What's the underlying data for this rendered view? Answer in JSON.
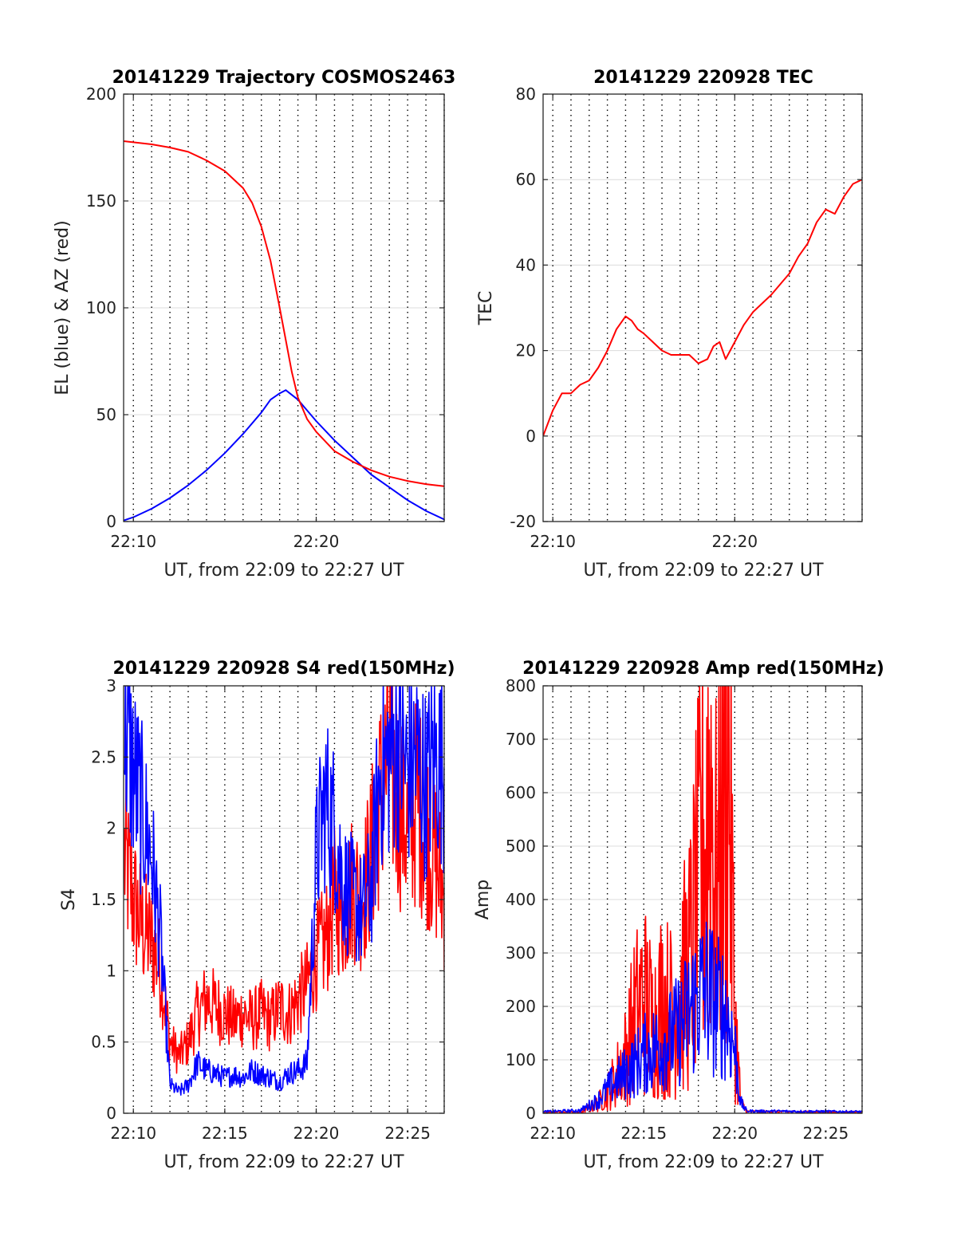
{
  "chart_data": [
    {
      "type": "line",
      "title": "20141229 Trajectory COSMOS2463",
      "xlabel": "UT, from 22:09 to 22:27 UT",
      "ylabel": "EL (blue) & AZ (red)",
      "xlim": [
        "22:09:28",
        "22:27:00"
      ],
      "ylim": [
        0,
        200
      ],
      "xticks": [
        "22:10",
        "22:20"
      ],
      "yticks": [
        0,
        50,
        100,
        150,
        200
      ],
      "grid": true,
      "vlines_dotted_every_min": true,
      "series": [
        {
          "color": "#0000ff",
          "x": [
            "22:09:28",
            "22:10:00",
            "22:11:00",
            "22:12:00",
            "22:13:00",
            "22:14:00",
            "22:15:00",
            "22:16:00",
            "22:17:00",
            "22:17:30",
            "22:18:00",
            "22:18:20",
            "22:19:00",
            "22:20:00",
            "22:21:00",
            "22:22:00",
            "22:23:00",
            "22:24:00",
            "22:25:00",
            "22:26:00",
            "22:27:00"
          ],
          "y": [
            0.5,
            2,
            6,
            11,
            17,
            24,
            32,
            41,
            51,
            57,
            60,
            61.5,
            57,
            47,
            38,
            30,
            22,
            16,
            10,
            5,
            1
          ]
        },
        {
          "color": "#ff0000",
          "x": [
            "22:09:28",
            "22:11:00",
            "22:12:00",
            "22:13:00",
            "22:14:00",
            "22:15:00",
            "22:16:00",
            "22:16:30",
            "22:17:00",
            "22:17:30",
            "22:18:00",
            "22:18:20",
            "22:18:40",
            "22:19:00",
            "22:19:30",
            "22:20:00",
            "22:21:00",
            "22:22:00",
            "22:23:00",
            "22:24:00",
            "22:25:00",
            "22:26:00",
            "22:27:00"
          ],
          "y": [
            178,
            176.5,
            175,
            173,
            169,
            164,
            156,
            149,
            138,
            122,
            100,
            85,
            70,
            58,
            48,
            42,
            33,
            28,
            24,
            21,
            19,
            17.5,
            16.5
          ]
        }
      ]
    },
    {
      "type": "line",
      "title": "20141229 220928 TEC",
      "xlabel": "UT, from 22:09 to 22:27 UT",
      "ylabel": "TEC",
      "xlim": [
        "22:09:28",
        "22:27:00"
      ],
      "ylim": [
        -20,
        80
      ],
      "xticks": [
        "22:10",
        "22:20"
      ],
      "yticks": [
        -20,
        0,
        20,
        40,
        60,
        80
      ],
      "grid": true,
      "vlines_dotted_every_min": true,
      "series": [
        {
          "color": "#ff0000",
          "x": [
            "22:09:28",
            "22:10:00",
            "22:10:30",
            "22:11:00",
            "22:11:30",
            "22:12:00",
            "22:12:30",
            "22:13:00",
            "22:13:30",
            "22:14:00",
            "22:14:20",
            "22:14:40",
            "22:15:00",
            "22:15:30",
            "22:16:00",
            "22:16:30",
            "22:17:00",
            "22:17:30",
            "22:18:00",
            "22:18:30",
            "22:18:50",
            "22:19:10",
            "22:19:30",
            "22:19:45",
            "22:20:00",
            "22:20:30",
            "22:21:00",
            "22:22:00",
            "22:23:00",
            "22:23:30",
            "22:24:00",
            "22:24:30",
            "22:25:00",
            "22:25:30",
            "22:26:00",
            "22:26:30",
            "22:27:00"
          ],
          "y": [
            0,
            6,
            10,
            10,
            12,
            13,
            16,
            20,
            25,
            28,
            27,
            25,
            24,
            22,
            20,
            19,
            19,
            19,
            17,
            18,
            21,
            22,
            18,
            20,
            22,
            26,
            29,
            33,
            38,
            42,
            45,
            50,
            53,
            52,
            56,
            59,
            60
          ]
        }
      ]
    },
    {
      "type": "line",
      "title": "20141229 220928 S4 red(150MHz)",
      "xlabel": "UT, from 22:09 to 22:27 UT",
      "ylabel": "S4",
      "xlim": [
        "22:09:28",
        "22:27:00"
      ],
      "ylim": [
        0,
        3
      ],
      "xticks": [
        "22:10",
        "22:15",
        "22:20",
        "22:25"
      ],
      "yticks": [
        0,
        0.5,
        1,
        1.5,
        2,
        2.5,
        3
      ],
      "grid": true,
      "vlines_dotted_every_min": true,
      "series": [
        {
          "color": "#ff0000",
          "noise": 0.35,
          "x": [
            "22:09:30",
            "22:10:00",
            "22:10:30",
            "22:11:00",
            "22:11:30",
            "22:12:00",
            "22:12:30",
            "22:13:00",
            "22:13:30",
            "22:14:00",
            "22:14:30",
            "22:15:00",
            "22:15:30",
            "22:16:00",
            "22:16:30",
            "22:17:00",
            "22:17:30",
            "22:18:00",
            "22:18:30",
            "22:19:00",
            "22:19:30",
            "22:20:00",
            "22:20:30",
            "22:21:00",
            "22:21:30",
            "22:22:00",
            "22:22:30",
            "22:23:00",
            "22:23:30",
            "22:24:00",
            "22:24:30",
            "22:25:00",
            "22:25:30",
            "22:26:00",
            "22:26:30",
            "22:27:00"
          ],
          "y": [
            1.8,
            1.5,
            1.3,
            1.2,
            1.0,
            0.5,
            0.4,
            0.5,
            0.7,
            0.8,
            0.75,
            0.7,
            0.65,
            0.7,
            0.65,
            0.7,
            0.65,
            0.75,
            0.7,
            0.8,
            0.9,
            1.1,
            1.2,
            1.5,
            1.4,
            1.6,
            1.5,
            1.8,
            2.2,
            2.5,
            2.2,
            2.0,
            2.2,
            2.0,
            1.8,
            1.5
          ]
        },
        {
          "color": "#0000ff",
          "noise": 0.3,
          "x": [
            "22:09:30",
            "22:10:00",
            "22:10:30",
            "22:11:00",
            "22:11:30",
            "22:12:00",
            "22:12:30",
            "22:13:00",
            "22:13:30",
            "22:14:00",
            "22:14:30",
            "22:15:00",
            "22:15:30",
            "22:16:00",
            "22:16:30",
            "22:17:00",
            "22:17:30",
            "22:18:00",
            "22:18:30",
            "22:19:00",
            "22:19:30",
            "22:20:00",
            "22:20:30",
            "22:21:00",
            "22:21:30",
            "22:22:00",
            "22:22:30",
            "22:23:00",
            "22:23:30",
            "22:24:00",
            "22:24:30",
            "22:25:00",
            "22:25:30",
            "22:26:00",
            "22:26:30",
            "22:27:00"
          ],
          "y": [
            2.7,
            2.4,
            2.1,
            1.8,
            1.2,
            0.2,
            0.15,
            0.2,
            0.35,
            0.3,
            0.28,
            0.25,
            0.27,
            0.25,
            0.3,
            0.27,
            0.25,
            0.22,
            0.28,
            0.3,
            0.35,
            1.8,
            2.2,
            2.0,
            1.6,
            1.5,
            1.4,
            1.6,
            2.4,
            2.5,
            2.6,
            2.4,
            2.5,
            2.3,
            2.5,
            2.4
          ]
        }
      ]
    },
    {
      "type": "line",
      "title": "20141229 220928 Amp red(150MHz)",
      "xlabel": "UT, from 22:09 to 22:27 UT",
      "ylabel": "Amp",
      "xlim": [
        "22:09:28",
        "22:27:00"
      ],
      "ylim": [
        0,
        800
      ],
      "xticks": [
        "22:10",
        "22:15",
        "22:20",
        "22:25"
      ],
      "yticks": [
        0,
        100,
        200,
        300,
        400,
        500,
        600,
        700,
        800
      ],
      "grid": true,
      "vlines_dotted_every_min": true,
      "series": [
        {
          "color": "#ff0000",
          "noise": 0.9,
          "x": [
            "22:09:28",
            "22:11:30",
            "22:12:00",
            "22:12:30",
            "22:13:00",
            "22:13:30",
            "22:14:00",
            "22:14:30",
            "22:15:00",
            "22:15:30",
            "22:16:00",
            "22:16:30",
            "22:17:00",
            "22:17:30",
            "22:18:00",
            "22:18:20",
            "22:18:40",
            "22:19:00",
            "22:19:20",
            "22:19:40",
            "22:20:00",
            "22:20:20",
            "22:20:40",
            "22:27:00"
          ],
          "y": [
            2,
            2,
            10,
            20,
            40,
            70,
            110,
            180,
            220,
            170,
            210,
            190,
            230,
            280,
            420,
            520,
            640,
            400,
            560,
            700,
            180,
            20,
            3,
            2
          ]
        },
        {
          "color": "#0000ff",
          "noise": 0.7,
          "x": [
            "22:09:28",
            "22:11:30",
            "22:12:00",
            "22:12:30",
            "22:13:00",
            "22:13:30",
            "22:14:00",
            "22:14:30",
            "22:15:00",
            "22:15:30",
            "22:16:00",
            "22:16:30",
            "22:17:00",
            "22:17:30",
            "22:18:00",
            "22:18:30",
            "22:19:00",
            "22:19:30",
            "22:20:00",
            "22:20:20",
            "22:20:40",
            "22:27:00"
          ],
          "y": [
            3,
            5,
            15,
            25,
            45,
            60,
            75,
            90,
            110,
            120,
            130,
            140,
            160,
            190,
            220,
            230,
            200,
            190,
            120,
            20,
            4,
            3
          ]
        }
      ]
    }
  ]
}
